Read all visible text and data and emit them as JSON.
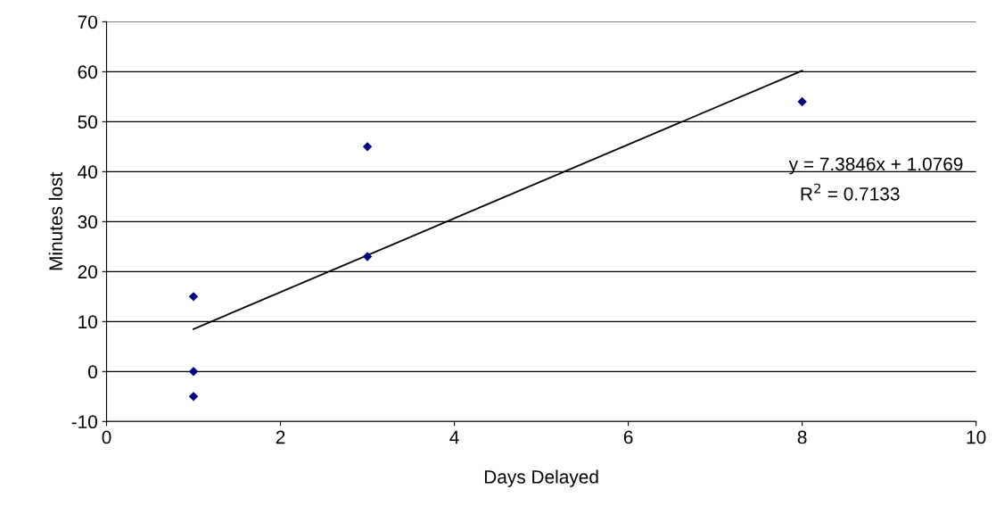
{
  "chart_data": {
    "type": "scatter",
    "xlabel": "Days Delayed",
    "ylabel": "Minutes lost",
    "series": [
      {
        "color": "#000080",
        "marker": "diamond",
        "x": [
          1,
          1,
          1,
          3,
          3,
          8
        ],
        "values": [
          15,
          0,
          -5,
          45,
          23,
          54
        ]
      },
      {
        "type": "line",
        "color": "#000000",
        "marker": "none",
        "line_style": "solid",
        "x": [
          1,
          8
        ],
        "values": [
          8.5,
          60.2
        ]
      }
    ],
    "annotations": [
      "y = 7.3846x + 1.0769",
      "R$^{2}$ = 0.7133"
    ],
    "xlim": [
      0,
      10
    ],
    "xticks": [
      0,
      2,
      4,
      6,
      8,
      10
    ],
    "ylim": [
      -10,
      70
    ],
    "yticks": [
      -10,
      0,
      10,
      20,
      30,
      40,
      50,
      60,
      70
    ],
    "grid": "y",
    "legend": false
  }
}
